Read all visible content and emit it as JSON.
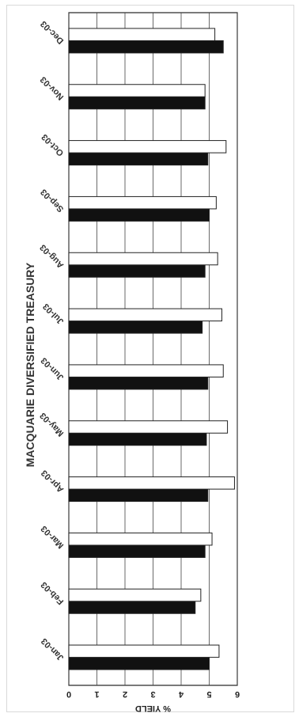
{
  "chart_data": {
    "type": "bar",
    "title": "MACQUARIE DIVERSIFIED TREASURY",
    "ylabel": "% YIELD",
    "xlabel": "",
    "categories": [
      "Jan-03",
      "Feb-03",
      "Mar-03",
      "Apr-03",
      "May-03",
      "Jun-03",
      "Jul-03",
      "Aug-03",
      "Sep-03",
      "Oct-03",
      "Nov-03",
      "Dec-03"
    ],
    "ylim": [
      0,
      6
    ],
    "yticks": [
      "0",
      "1",
      "2",
      "3",
      "4",
      "5",
      "6"
    ],
    "series": [
      {
        "values": [
          5.0,
          4.5,
          4.85,
          4.95,
          4.9,
          4.95,
          4.75,
          4.85,
          5.0,
          4.95,
          4.85,
          5.5
        ],
        "color": "#111111"
      },
      {
        "values": [
          5.35,
          4.7,
          5.1,
          5.9,
          5.65,
          5.5,
          5.45,
          5.3,
          5.25,
          5.6,
          4.85,
          5.2
        ],
        "color": "#ffffff"
      }
    ],
    "grid": true,
    "orientation": "rotated-180"
  }
}
